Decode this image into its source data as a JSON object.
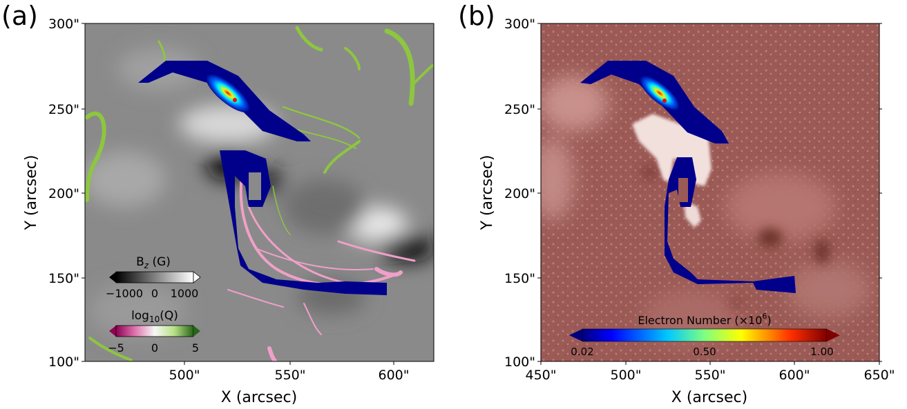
{
  "panels": [
    {
      "letter": "(a)",
      "xlabel": "X (arcsec)",
      "ylabel": "Y (arcsec)",
      "xticks": [
        "500\"",
        "550\"",
        "600\""
      ],
      "yticks": [
        "300\"",
        "250\"",
        "200\"",
        "150\"",
        "100\""
      ],
      "colorbars": [
        {
          "title": "B",
          "title_sub": "z",
          "title_after": " (G)",
          "ticks": [
            "−1000",
            "0",
            "1000"
          ],
          "colors": [
            "#000000",
            "#808080",
            "#ffffff"
          ]
        },
        {
          "title": "log",
          "title_sub": "10",
          "title_after": "(Q)",
          "ticks": [
            "−5",
            "0",
            "5"
          ],
          "colors": [
            "#8e0152",
            "#de77ae",
            "#f7f7f7",
            "#b8e186",
            "#276419"
          ]
        }
      ]
    },
    {
      "letter": "(b)",
      "xlabel": "X (arcsec)",
      "ylabel": "Y (arcsec)",
      "xticks": [
        "450\"",
        "500\"",
        "550\"",
        "600\"",
        "650\""
      ],
      "yticks": [
        "300\"",
        "250\"",
        "200\"",
        "150\"",
        "100\""
      ],
      "colorbar": {
        "title": "Electron Number (×10",
        "title_sup": "6",
        "title_after": ")",
        "ticks": [
          "0.02",
          "0.50",
          "1.00"
        ],
        "colors": [
          "#00007f",
          "#0000ff",
          "#007fff",
          "#00ffff",
          "#7fff7f",
          "#ffff00",
          "#ff7f00",
          "#ff0000",
          "#7f0000"
        ]
      }
    }
  ],
  "colors": {
    "magnetogram_gray": "#8a8a8a",
    "qsl_green": "#8dc63f",
    "qsl_pink": "#f0a0c8",
    "electron_outline": "#00008b",
    "euv_background": "#9b5a55",
    "euv_bright": "#e8cfcc"
  }
}
